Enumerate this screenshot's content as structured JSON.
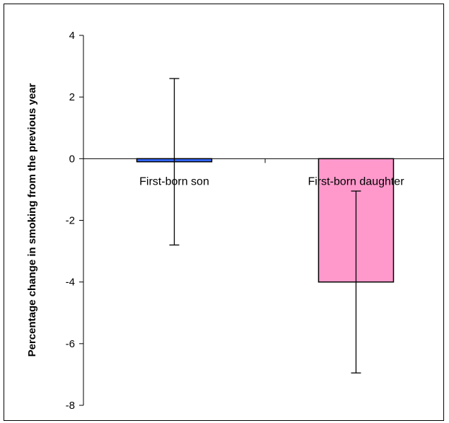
{
  "chart_data": {
    "type": "bar",
    "title": "",
    "xlabel": "",
    "ylabel": "Percentage change in smoking from the previous year",
    "categories": [
      "First-born son",
      "First-born daughter"
    ],
    "values": [
      -0.1,
      -4.0
    ],
    "error_bars": [
      {
        "lower": -2.8,
        "upper": 2.6
      },
      {
        "lower": -6.95,
        "upper": -1.05
      }
    ],
    "colors": [
      "#3366ff",
      "#ff99cc"
    ],
    "ylim": [
      -8,
      4
    ],
    "yticks": [
      "4",
      "2",
      "0",
      "-2",
      "-4",
      "-6",
      "-8"
    ],
    "ytick_values": [
      4,
      2,
      0,
      -2,
      -4,
      -6,
      -8
    ],
    "grid": false,
    "legend": "none"
  }
}
